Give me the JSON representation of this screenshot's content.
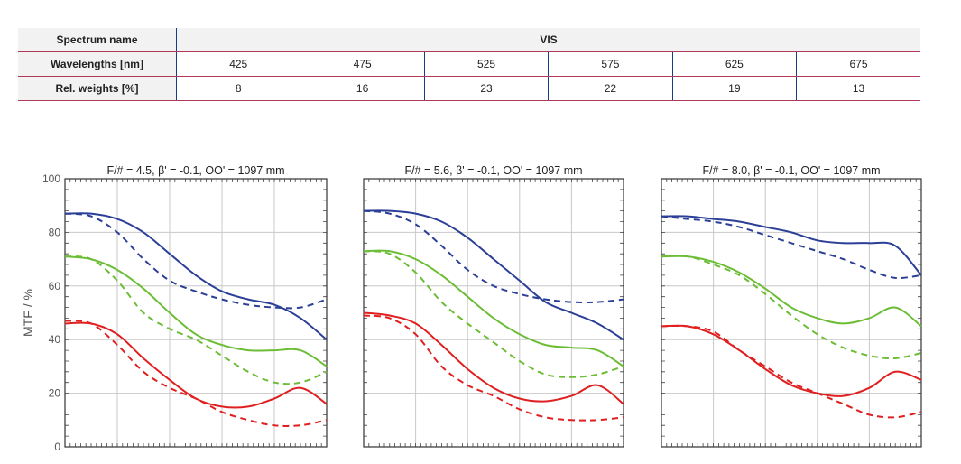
{
  "table": {
    "spectrum_label": "Spectrum name",
    "spectrum_value": "VIS",
    "wavelengths_label": "Wavelengths [nm]",
    "wavelengths": [
      "425",
      "475",
      "525",
      "575",
      "625",
      "675"
    ],
    "weights_label": "Rel. weights [%]",
    "weights": [
      "8",
      "16",
      "23",
      "22",
      "19",
      "13"
    ]
  },
  "chart_data": [
    {
      "type": "line",
      "title": "F/# = 4.5, β' = -0.1, OO' = 1097 mm",
      "ylabel": "MTF / %",
      "ylim": [
        0,
        100
      ],
      "yticks": [
        "0",
        "20",
        "40",
        "60",
        "80",
        "100"
      ],
      "xlim": [
        0,
        1
      ],
      "grid": true,
      "series": [
        {
          "color": "#2b3f97",
          "style": "solid",
          "x": [
            0,
            0.1,
            0.2,
            0.3,
            0.4,
            0.5,
            0.6,
            0.7,
            0.8,
            0.9,
            1.0
          ],
          "y": [
            87,
            87,
            85,
            80,
            72,
            64,
            58,
            55,
            53,
            48,
            40
          ]
        },
        {
          "color": "#2b3f97",
          "style": "dashed",
          "x": [
            0,
            0.1,
            0.2,
            0.3,
            0.4,
            0.5,
            0.6,
            0.7,
            0.8,
            0.9,
            1.0
          ],
          "y": [
            87,
            86,
            80,
            70,
            62,
            58,
            55,
            53,
            52,
            52,
            55
          ]
        },
        {
          "color": "#6cbd35",
          "style": "solid",
          "x": [
            0,
            0.1,
            0.2,
            0.3,
            0.4,
            0.5,
            0.6,
            0.7,
            0.8,
            0.9,
            1.0
          ],
          "y": [
            71,
            70,
            66,
            59,
            50,
            42,
            38,
            36,
            36,
            36,
            30
          ]
        },
        {
          "color": "#6cbd35",
          "style": "dashed",
          "x": [
            0,
            0.1,
            0.2,
            0.3,
            0.4,
            0.5,
            0.6,
            0.7,
            0.8,
            0.9,
            1.0
          ],
          "y": [
            71,
            70,
            62,
            50,
            44,
            40,
            34,
            28,
            24,
            24,
            28
          ]
        },
        {
          "color": "#e02020",
          "style": "solid",
          "x": [
            0,
            0.1,
            0.2,
            0.3,
            0.4,
            0.5,
            0.6,
            0.7,
            0.8,
            0.9,
            1.0
          ],
          "y": [
            46,
            46,
            42,
            33,
            25,
            18,
            15,
            15,
            18,
            22,
            16
          ]
        },
        {
          "color": "#e02020",
          "style": "dashed",
          "x": [
            0,
            0.1,
            0.2,
            0.3,
            0.4,
            0.5,
            0.6,
            0.7,
            0.8,
            0.9,
            1.0
          ],
          "y": [
            47,
            46,
            38,
            28,
            22,
            18,
            13,
            10,
            8,
            8,
            10
          ]
        }
      ]
    },
    {
      "type": "line",
      "title": "F/# = 5.6, β' = -0.1, OO' = 1097 mm",
      "ylim": [
        0,
        100
      ],
      "xlim": [
        0,
        1
      ],
      "grid": true,
      "series": [
        {
          "color": "#2b3f97",
          "style": "solid",
          "x": [
            0,
            0.1,
            0.2,
            0.3,
            0.4,
            0.5,
            0.6,
            0.7,
            0.8,
            0.9,
            1.0
          ],
          "y": [
            88,
            88,
            87,
            84,
            78,
            70,
            62,
            54,
            50,
            46,
            40
          ]
        },
        {
          "color": "#2b3f97",
          "style": "dashed",
          "x": [
            0,
            0.1,
            0.2,
            0.3,
            0.4,
            0.5,
            0.6,
            0.7,
            0.8,
            0.9,
            1.0
          ],
          "y": [
            88,
            87,
            83,
            75,
            66,
            60,
            57,
            55,
            54,
            54,
            55
          ]
        },
        {
          "color": "#6cbd35",
          "style": "solid",
          "x": [
            0,
            0.1,
            0.2,
            0.3,
            0.4,
            0.5,
            0.6,
            0.7,
            0.8,
            0.9,
            1.0
          ],
          "y": [
            73,
            73,
            70,
            64,
            56,
            48,
            42,
            38,
            37,
            36,
            30
          ]
        },
        {
          "color": "#6cbd35",
          "style": "dashed",
          "x": [
            0,
            0.1,
            0.2,
            0.3,
            0.4,
            0.5,
            0.6,
            0.7,
            0.8,
            0.9,
            1.0
          ],
          "y": [
            73,
            72,
            65,
            54,
            46,
            39,
            32,
            27,
            26,
            27,
            30
          ]
        },
        {
          "color": "#e02020",
          "style": "solid",
          "x": [
            0,
            0.1,
            0.2,
            0.3,
            0.4,
            0.5,
            0.6,
            0.7,
            0.8,
            0.9,
            1.0
          ],
          "y": [
            50,
            49,
            46,
            38,
            29,
            22,
            18,
            17,
            19,
            23,
            16
          ]
        },
        {
          "color": "#e02020",
          "style": "dashed",
          "x": [
            0,
            0.1,
            0.2,
            0.3,
            0.4,
            0.5,
            0.6,
            0.7,
            0.8,
            0.9,
            1.0
          ],
          "y": [
            49,
            48,
            42,
            30,
            23,
            19,
            14,
            11,
            10,
            10,
            11
          ]
        }
      ]
    },
    {
      "type": "line",
      "title": "F/# = 8.0, β' = -0.1, OO' = 1097 mm",
      "ylim": [
        0,
        100
      ],
      "xlim": [
        0,
        1
      ],
      "grid": true,
      "series": [
        {
          "color": "#2b3f97",
          "style": "solid",
          "x": [
            0,
            0.1,
            0.2,
            0.3,
            0.4,
            0.5,
            0.6,
            0.7,
            0.8,
            0.9,
            1.0
          ],
          "y": [
            86,
            86,
            85,
            84,
            82,
            80,
            77,
            76,
            76,
            75,
            64
          ]
        },
        {
          "color": "#2b3f97",
          "style": "dashed",
          "x": [
            0,
            0.1,
            0.2,
            0.3,
            0.4,
            0.5,
            0.6,
            0.7,
            0.8,
            0.9,
            1.0
          ],
          "y": [
            86,
            85,
            84,
            82,
            79,
            76,
            73,
            70,
            66,
            63,
            64
          ]
        },
        {
          "color": "#6cbd35",
          "style": "solid",
          "x": [
            0,
            0.1,
            0.2,
            0.3,
            0.4,
            0.5,
            0.6,
            0.7,
            0.8,
            0.9,
            1.0
          ],
          "y": [
            71,
            71,
            69,
            65,
            59,
            52,
            48,
            46,
            48,
            52,
            45
          ]
        },
        {
          "color": "#6cbd35",
          "style": "dashed",
          "x": [
            0,
            0.1,
            0.2,
            0.3,
            0.4,
            0.5,
            0.6,
            0.7,
            0.8,
            0.9,
            1.0
          ],
          "y": [
            71,
            71,
            68,
            64,
            57,
            49,
            42,
            37,
            34,
            33,
            35
          ]
        },
        {
          "color": "#e02020",
          "style": "solid",
          "x": [
            0,
            0.1,
            0.2,
            0.3,
            0.4,
            0.5,
            0.6,
            0.7,
            0.8,
            0.9,
            1.0
          ],
          "y": [
            45,
            45,
            42,
            36,
            29,
            23,
            20,
            19,
            22,
            28,
            25
          ]
        },
        {
          "color": "#e02020",
          "style": "dashed",
          "x": [
            0,
            0.1,
            0.2,
            0.3,
            0.4,
            0.5,
            0.6,
            0.7,
            0.8,
            0.9,
            1.0
          ],
          "y": [
            45,
            45,
            43,
            36,
            30,
            24,
            20,
            16,
            12,
            11,
            13
          ]
        }
      ]
    }
  ]
}
